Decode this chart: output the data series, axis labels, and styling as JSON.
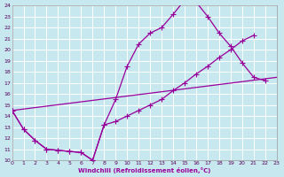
{
  "xlabel": "Windchill (Refroidissement éolien,°C)",
  "line_color": "#990099",
  "bg_color": "#c8e8f0",
  "grid_color": "#b0d8e0",
  "xlim": [
    0,
    23
  ],
  "ylim": [
    10,
    24
  ],
  "xticks": [
    0,
    1,
    2,
    3,
    4,
    5,
    6,
    7,
    8,
    9,
    10,
    11,
    12,
    13,
    14,
    15,
    16,
    17,
    18,
    19,
    20,
    21,
    22,
    23
  ],
  "yticks": [
    10,
    11,
    12,
    13,
    14,
    15,
    16,
    17,
    18,
    19,
    20,
    21,
    22,
    23,
    24
  ],
  "curve1_x": [
    0,
    1,
    2,
    3,
    4,
    5,
    6,
    7,
    8,
    9,
    10,
    11,
    12,
    13,
    14,
    15,
    16,
    17,
    18,
    19,
    20,
    21,
    22
  ],
  "curve1_y": [
    14.5,
    12.8,
    11.8,
    11.0,
    10.9,
    10.8,
    10.7,
    10.0,
    13.2,
    15.5,
    18.5,
    20.5,
    21.5,
    22.0,
    23.2,
    24.5,
    24.3,
    23.0,
    21.5,
    20.3,
    18.8,
    17.5,
    17.2
  ],
  "curve2_x": [
    0,
    1,
    2,
    3,
    4,
    5,
    6,
    7,
    8,
    9,
    10,
    11,
    12,
    13,
    14,
    15,
    16,
    17,
    18,
    19,
    20,
    21
  ],
  "curve2_y": [
    14.5,
    12.8,
    11.8,
    11.0,
    10.9,
    10.8,
    10.7,
    10.0,
    13.2,
    13.5,
    14.0,
    14.5,
    15.0,
    15.5,
    16.3,
    17.0,
    17.8,
    18.5,
    19.3,
    20.0,
    20.8,
    21.3
  ],
  "curve3_x": [
    0,
    23
  ],
  "curve3_y": [
    14.5,
    17.5
  ]
}
